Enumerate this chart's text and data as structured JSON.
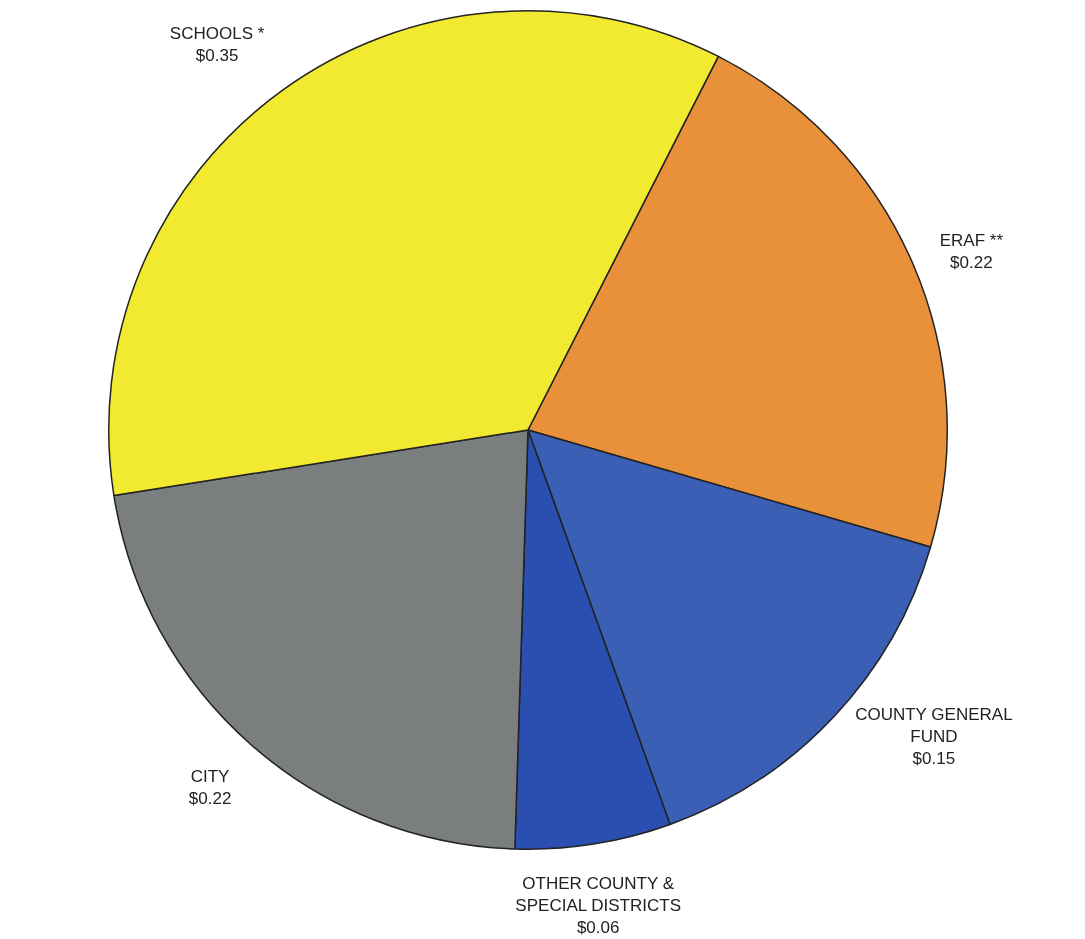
{
  "chart_data": {
    "type": "pie",
    "categories": [
      "ERAF **",
      "COUNTY GENERAL FUND",
      "OTHER COUNTY & SPECIAL DISTRICTS",
      "CITY",
      "SCHOOLS *"
    ],
    "values": [
      0.22,
      0.15,
      0.06,
      0.22,
      0.35
    ],
    "value_labels": [
      "$0.22",
      "$0.15",
      "$0.06",
      "$0.22",
      "$0.35"
    ],
    "colors": [
      "#e8903a",
      "#3a5fb5",
      "#2b4fb0",
      "#7a7e7e",
      "#f2ea30"
    ],
    "legend": false
  }
}
